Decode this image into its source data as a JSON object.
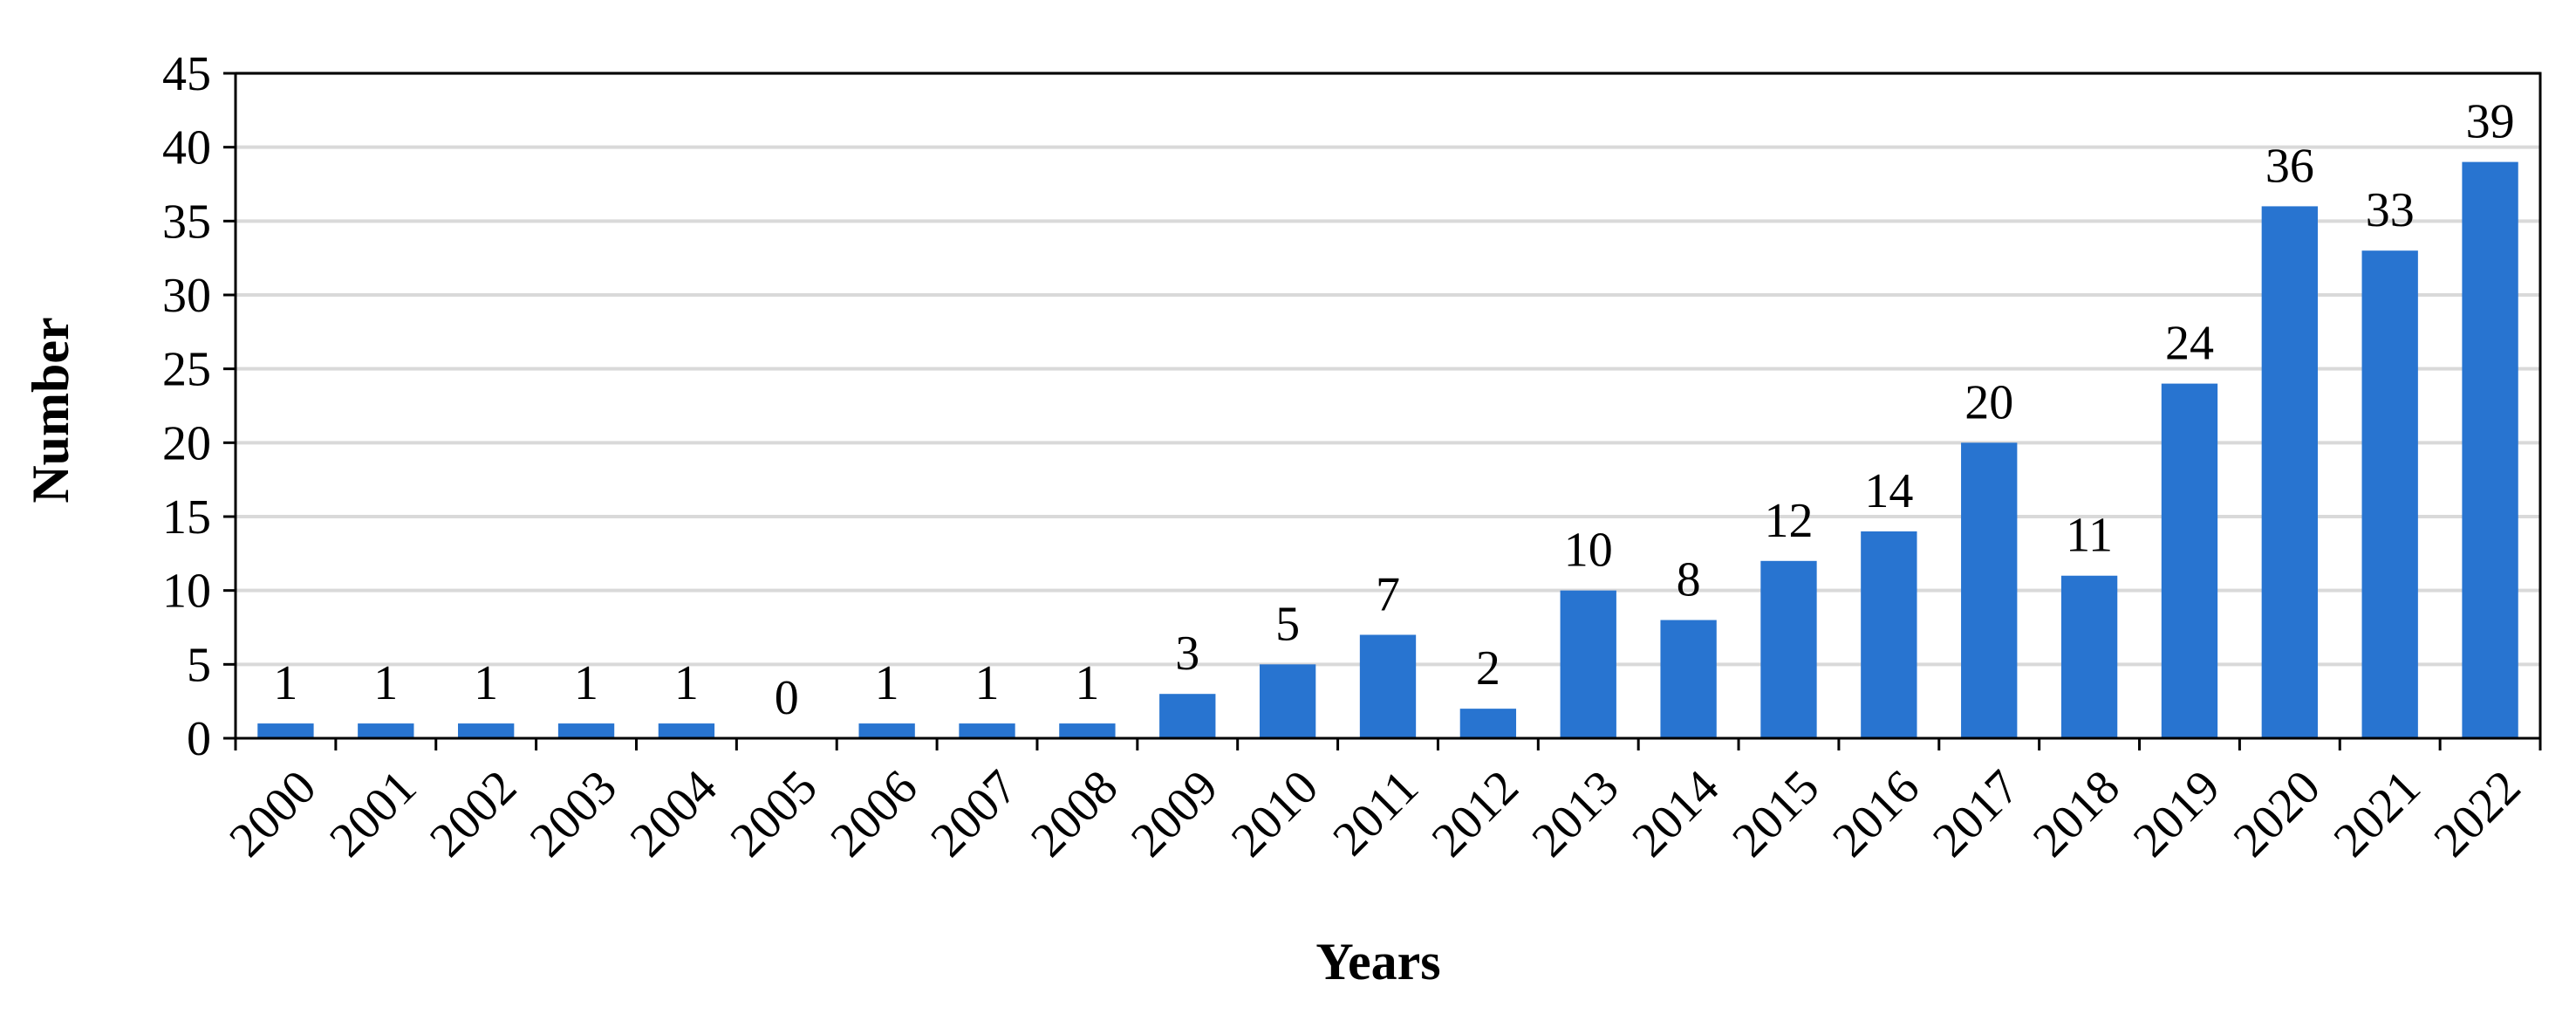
{
  "chart_data": {
    "type": "bar",
    "title": "",
    "xlabel": "Years",
    "ylabel": "Number",
    "categories": [
      "2000",
      "2001",
      "2002",
      "2003",
      "2004",
      "2005",
      "2006",
      "2007",
      "2008",
      "2009",
      "2010",
      "2011",
      "2012",
      "2013",
      "2014",
      "2015",
      "2016",
      "2017",
      "2018",
      "2019",
      "2020",
      "2021",
      "2022"
    ],
    "values": [
      1,
      1,
      1,
      1,
      1,
      0,
      1,
      1,
      1,
      3,
      5,
      7,
      2,
      10,
      8,
      12,
      14,
      20,
      11,
      24,
      36,
      33,
      39
    ],
    "ylim": [
      0,
      45
    ],
    "yticks": [
      "0",
      "5",
      "10",
      "15",
      "20",
      "25",
      "30",
      "35",
      "40",
      "45"
    ],
    "data_labels": [
      "1",
      "1",
      "1",
      "1",
      "1",
      "0",
      "1",
      "1",
      "1",
      "3",
      "5",
      "7",
      "2",
      "10",
      "8",
      "12",
      "14",
      "20",
      "11",
      "24",
      "36",
      "33",
      "39"
    ],
    "grid": true,
    "legend": "none",
    "bar_color": "#2874D0",
    "grid_color": "#D9D9D9",
    "axis_color": "#000000"
  }
}
